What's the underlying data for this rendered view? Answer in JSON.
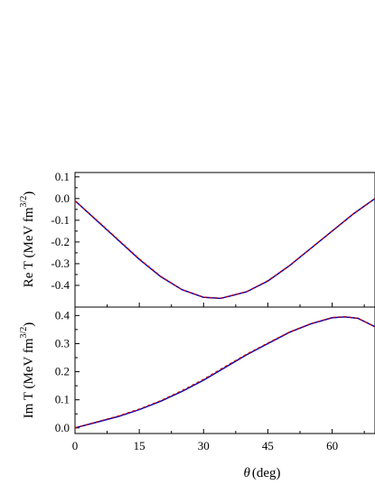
{
  "chart_data": [
    {
      "type": "line",
      "panel": "top",
      "ylabel": "Re T (MeV fm",
      "ylabel_sup": "3/2",
      "ylabel_close": ")",
      "xlim": [
        0,
        70
      ],
      "ylim": [
        -0.5,
        0.12
      ],
      "yticks": [
        0.1,
        0.0,
        -0.1,
        -0.2,
        -0.3,
        -0.4
      ],
      "ytick_labels": [
        "0.1",
        "0.0",
        "-0.1",
        "-0.2",
        "-0.3",
        "-0.4"
      ],
      "xticks": [
        0,
        15,
        30,
        45,
        60
      ],
      "series": [
        {
          "color": "#000000",
          "x": [
            0,
            5,
            10,
            15,
            20,
            25,
            30,
            34,
            40,
            45,
            50,
            55,
            60,
            65,
            70
          ],
          "y": [
            -0.01,
            -0.1,
            -0.19,
            -0.28,
            -0.36,
            -0.42,
            -0.455,
            -0.46,
            -0.43,
            -0.38,
            -0.31,
            -0.23,
            -0.15,
            -0.07,
            0.0
          ]
        },
        {
          "color": "#0000cc",
          "x": [
            0,
            5,
            10,
            15,
            20,
            25,
            30,
            34,
            40,
            45,
            50,
            55,
            60,
            65,
            70
          ],
          "y": [
            -0.01,
            -0.1,
            -0.19,
            -0.28,
            -0.36,
            -0.42,
            -0.455,
            -0.46,
            -0.43,
            -0.38,
            -0.31,
            -0.23,
            -0.15,
            -0.07,
            0.0
          ]
        },
        {
          "color": "#cc0000",
          "x": [
            0,
            5,
            10,
            15,
            20,
            25,
            30,
            34,
            40,
            45,
            50,
            55,
            60,
            65,
            70
          ],
          "y": [
            -0.01,
            -0.098,
            -0.188,
            -0.278,
            -0.358,
            -0.42,
            -0.454,
            -0.459,
            -0.429,
            -0.378,
            -0.309,
            -0.229,
            -0.149,
            -0.069,
            0.0
          ]
        }
      ]
    },
    {
      "type": "line",
      "panel": "bottom",
      "ylabel": "Im T (MeV fm",
      "ylabel_sup": "3/2",
      "ylabel_close": ")",
      "xlabel_italic": "θ",
      "xlabel_rest": "(deg)",
      "xlim": [
        0,
        70
      ],
      "ylim": [
        -0.02,
        0.43
      ],
      "yticks": [
        0.0,
        0.1,
        0.2,
        0.3,
        0.4
      ],
      "ytick_labels": [
        "0.0",
        "0.1",
        "0.2",
        "0.3",
        "0.4"
      ],
      "xticks": [
        0,
        15,
        30,
        45,
        60
      ],
      "xtick_labels": [
        "0",
        "15",
        "30",
        "45",
        "60"
      ],
      "series": [
        {
          "color": "#000000",
          "x": [
            0,
            5,
            10,
            15,
            20,
            25,
            30,
            35,
            40,
            45,
            50,
            55,
            60,
            63,
            66,
            70
          ],
          "y": [
            0.0,
            0.02,
            0.04,
            0.065,
            0.095,
            0.13,
            0.17,
            0.215,
            0.26,
            0.3,
            0.34,
            0.37,
            0.392,
            0.395,
            0.39,
            0.36
          ]
        },
        {
          "color": "#0000cc",
          "x": [
            0,
            5,
            10,
            15,
            20,
            25,
            30,
            35,
            40,
            45,
            50,
            55,
            60,
            63,
            66,
            70
          ],
          "y": [
            0.0,
            0.02,
            0.04,
            0.065,
            0.095,
            0.13,
            0.17,
            0.215,
            0.26,
            0.3,
            0.34,
            0.37,
            0.392,
            0.395,
            0.39,
            0.36
          ]
        },
        {
          "color": "#cc0000",
          "x": [
            0,
            5,
            10,
            15,
            20,
            25,
            30,
            35,
            40,
            45,
            50,
            55,
            60,
            63,
            66,
            70
          ],
          "y": [
            0.0,
            0.021,
            0.042,
            0.067,
            0.097,
            0.133,
            0.173,
            0.218,
            0.262,
            0.302,
            0.341,
            0.371,
            0.393,
            0.396,
            0.39,
            0.36
          ]
        }
      ]
    }
  ]
}
